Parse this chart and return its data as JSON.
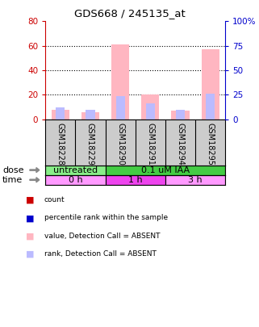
{
  "title": "GDS668 / 245135_at",
  "samples": [
    "GSM18228",
    "GSM18229",
    "GSM18290",
    "GSM18291",
    "GSM18294",
    "GSM18295"
  ],
  "value_absent": [
    8,
    6,
    61,
    20,
    7,
    57
  ],
  "rank_absent": [
    10,
    8,
    19,
    13,
    8,
    21
  ],
  "left_ylim": [
    0,
    80
  ],
  "right_ylim": [
    0,
    100
  ],
  "left_yticks": [
    0,
    20,
    40,
    60,
    80
  ],
  "right_yticks": [
    0,
    25,
    50,
    75,
    100
  ],
  "right_yticklabels": [
    "0",
    "25",
    "50",
    "75",
    "100%"
  ],
  "dose_labels": [
    {
      "label": "untreated",
      "span": [
        0,
        2
      ],
      "color": "#88EE88"
    },
    {
      "label": "0.1 uM IAA",
      "span": [
        2,
        6
      ],
      "color": "#44CC44"
    }
  ],
  "time_labels": [
    {
      "label": "0 h",
      "span": [
        0,
        2
      ],
      "color": "#FF99FF"
    },
    {
      "label": "1 h",
      "span": [
        2,
        4
      ],
      "color": "#EE44EE"
    },
    {
      "label": "3 h",
      "span": [
        4,
        6
      ],
      "color": "#FF99FF"
    }
  ],
  "value_color_absent": "#FFB6C1",
  "rank_color_absent": "#BBBBFF",
  "count_color": "#CC0000",
  "rank_color": "#0000CC",
  "left_axis_color": "#CC0000",
  "right_axis_color": "#0000CC",
  "bg_color": "#FFFFFF",
  "sample_label_bg": "#CCCCCC",
  "legend_items": [
    {
      "color": "#CC0000",
      "label": "count"
    },
    {
      "color": "#0000CC",
      "label": "percentile rank within the sample"
    },
    {
      "color": "#FFB6C1",
      "label": "value, Detection Call = ABSENT"
    },
    {
      "color": "#BBBBFF",
      "label": "rank, Detection Call = ABSENT"
    }
  ]
}
